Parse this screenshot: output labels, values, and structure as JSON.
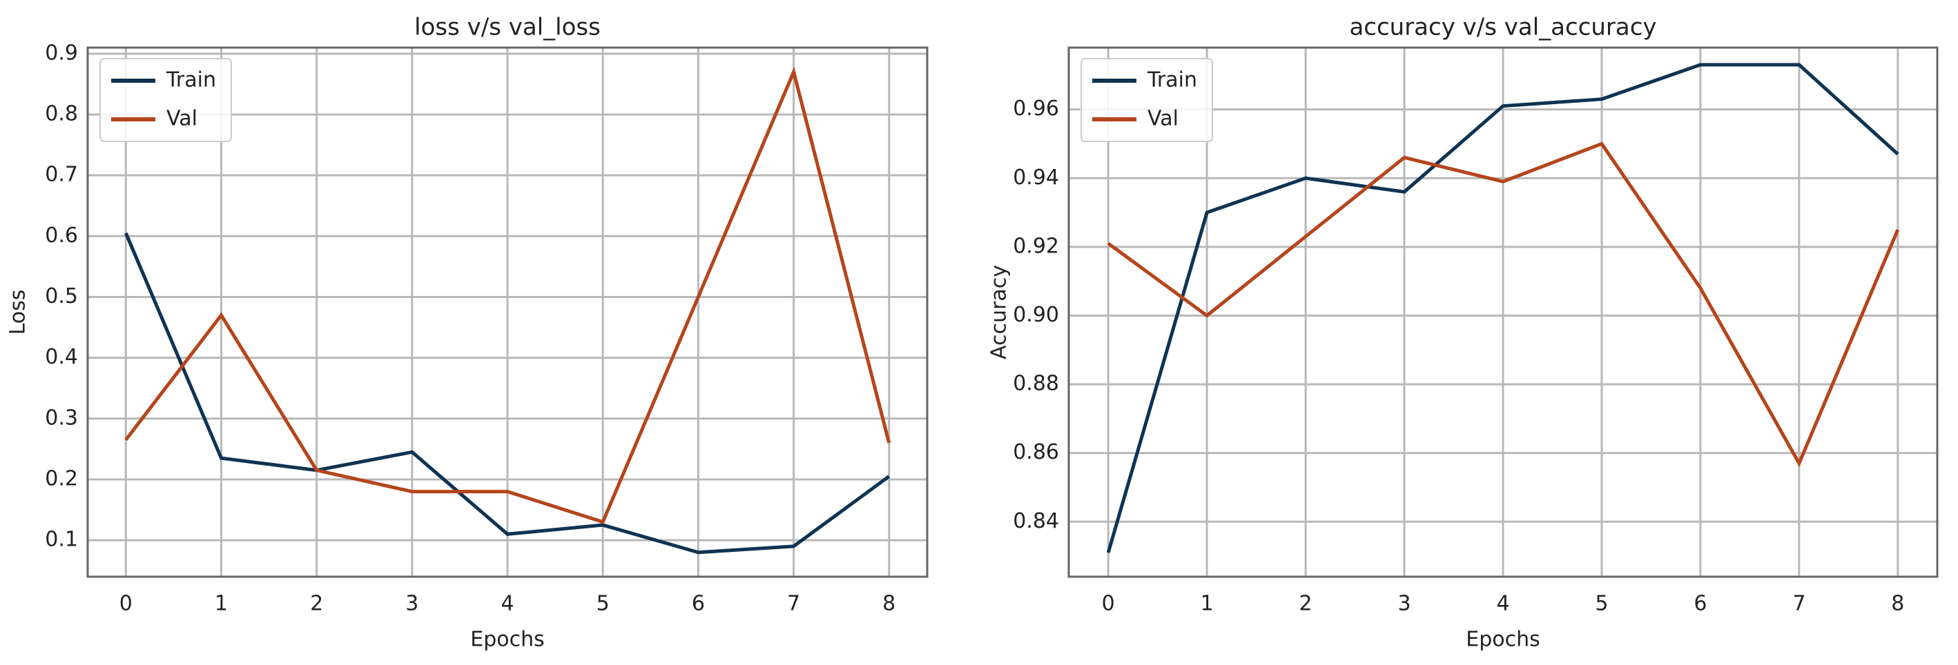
{
  "chart_data": [
    {
      "type": "line",
      "title": "loss v/s val_loss",
      "xlabel": "Epochs",
      "ylabel": "Loss",
      "x": [
        0,
        1,
        2,
        3,
        4,
        5,
        6,
        7,
        8
      ],
      "xlim": [
        -0.4,
        8.4
      ],
      "xticks": [
        0,
        1,
        2,
        3,
        4,
        5,
        6,
        7,
        8
      ],
      "ylim": [
        0.04,
        0.91
      ],
      "yticks": [
        0.1,
        0.2,
        0.3,
        0.4,
        0.5,
        0.6,
        0.7,
        0.8,
        0.9
      ],
      "grid": true,
      "legend": "upper left",
      "series": [
        {
          "name": "Train",
          "color": "#0f3352",
          "values": [
            0.605,
            0.235,
            0.215,
            0.245,
            0.11,
            0.125,
            0.08,
            0.09,
            0.205
          ]
        },
        {
          "name": "Val",
          "color": "#b5451b",
          "values": [
            0.265,
            0.47,
            0.215,
            0.18,
            0.18,
            0.13,
            0.5,
            0.87,
            0.26
          ]
        }
      ]
    },
    {
      "type": "line",
      "title": "accuracy v/s val_accuracy",
      "xlabel": "Epochs",
      "ylabel": "Accuracy",
      "x": [
        0,
        1,
        2,
        3,
        4,
        5,
        6,
        7,
        8
      ],
      "xlim": [
        -0.4,
        8.4
      ],
      "xticks": [
        0,
        1,
        2,
        3,
        4,
        5,
        6,
        7,
        8
      ],
      "ylim": [
        0.824,
        0.978
      ],
      "yticks": [
        0.84,
        0.86,
        0.88,
        {
          "value": 0.9,
          "label": "0.90"
        },
        0.92,
        0.94,
        0.96
      ],
      "grid": true,
      "legend": "upper left",
      "series": [
        {
          "name": "Train",
          "color": "#0f3352",
          "values": [
            0.831,
            0.93,
            0.94,
            0.936,
            0.961,
            0.963,
            0.973,
            0.973,
            0.947
          ]
        },
        {
          "name": "Val",
          "color": "#b5451b",
          "values": [
            0.921,
            0.9,
            0.923,
            0.946,
            0.939,
            0.95,
            0.908,
            0.857,
            0.925
          ]
        }
      ]
    }
  ]
}
